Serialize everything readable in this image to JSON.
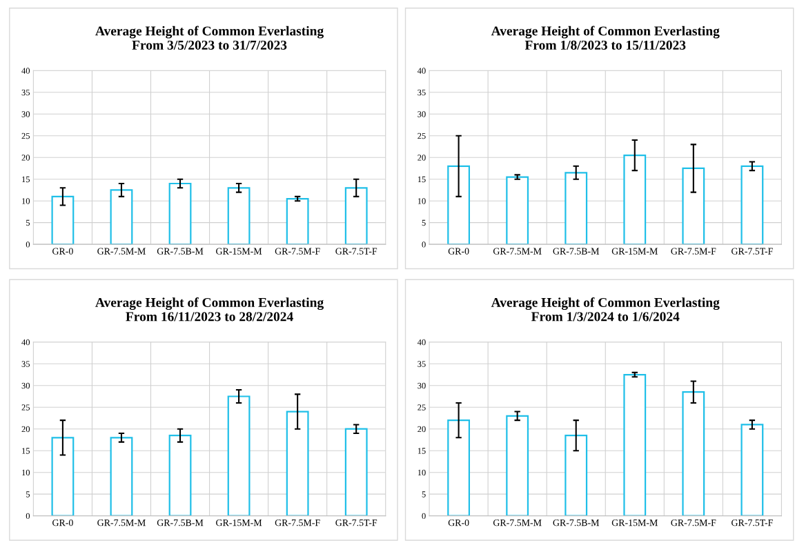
{
  "chart_data": [
    {
      "type": "bar",
      "title": "Average Height of Common Everlasting\nFrom 3/5/2023 to 31/7/2023",
      "categories": [
        "GR-0",
        "GR-7.5M-M",
        "GR-7.5B-M",
        "GR-15M-M",
        "GR-7.5M-F",
        "GR-7.5T-F"
      ],
      "values": [
        11,
        12.5,
        14,
        13,
        10.5,
        13
      ],
      "errors": [
        2,
        1.5,
        1,
        1,
        0.5,
        2
      ],
      "color": "#1fbfe8",
      "ylim": [
        0,
        40
      ],
      "yticks": [
        0,
        5,
        10,
        15,
        20,
        25,
        30,
        35,
        40
      ],
      "grid": true,
      "legend": false
    },
    {
      "type": "bar",
      "title": "Average Height of Common Everlasting\nFrom 1/8/2023 to 15/11/2023",
      "categories": [
        "GR-0",
        "GR-7.5M-M",
        "GR-7.5B-M",
        "GR-15M-M",
        "GR-7.5M-F",
        "GR-7.5T-F"
      ],
      "values": [
        18,
        15.5,
        16.5,
        20.5,
        17.5,
        18
      ],
      "errors": [
        7,
        0.5,
        1.5,
        3.5,
        5.5,
        1
      ],
      "color": "#1fbfe8",
      "ylim": [
        0,
        40
      ],
      "yticks": [
        0,
        5,
        10,
        15,
        20,
        25,
        30,
        35,
        40
      ],
      "grid": true,
      "legend": false
    },
    {
      "type": "bar",
      "title": "Average Height of Common Everlasting\nFrom 16/11/2023 to 28/2/2024",
      "categories": [
        "GR-0",
        "GR-7.5M-M",
        "GR-7.5B-M",
        "GR-15M-M",
        "GR-7.5M-F",
        "GR-7.5T-F"
      ],
      "values": [
        18,
        18,
        18.5,
        27.5,
        24,
        20
      ],
      "errors": [
        4,
        1,
        1.5,
        1.5,
        4,
        1
      ],
      "color": "#1fbfe8",
      "ylim": [
        0,
        40
      ],
      "yticks": [
        0,
        5,
        10,
        15,
        20,
        25,
        30,
        35,
        40
      ],
      "grid": true,
      "legend": false
    },
    {
      "type": "bar",
      "title": "Average Height of Common Everlasting\nFrom 1/3/2024 to 1/6/2024",
      "categories": [
        "GR-0",
        "GR-7.5M-M",
        "GR-7.5B-M",
        "GR-15M-M",
        "GR-7.5M-F",
        "GR-7.5T-F"
      ],
      "values": [
        22,
        23,
        18.5,
        32.5,
        28.5,
        21
      ],
      "errors": [
        4,
        1,
        3.5,
        0.5,
        2.5,
        1
      ],
      "color": "#1fbfe8",
      "ylim": [
        0,
        40
      ],
      "yticks": [
        0,
        5,
        10,
        15,
        20,
        25,
        30,
        35,
        40
      ],
      "grid": true,
      "legend": false
    }
  ]
}
